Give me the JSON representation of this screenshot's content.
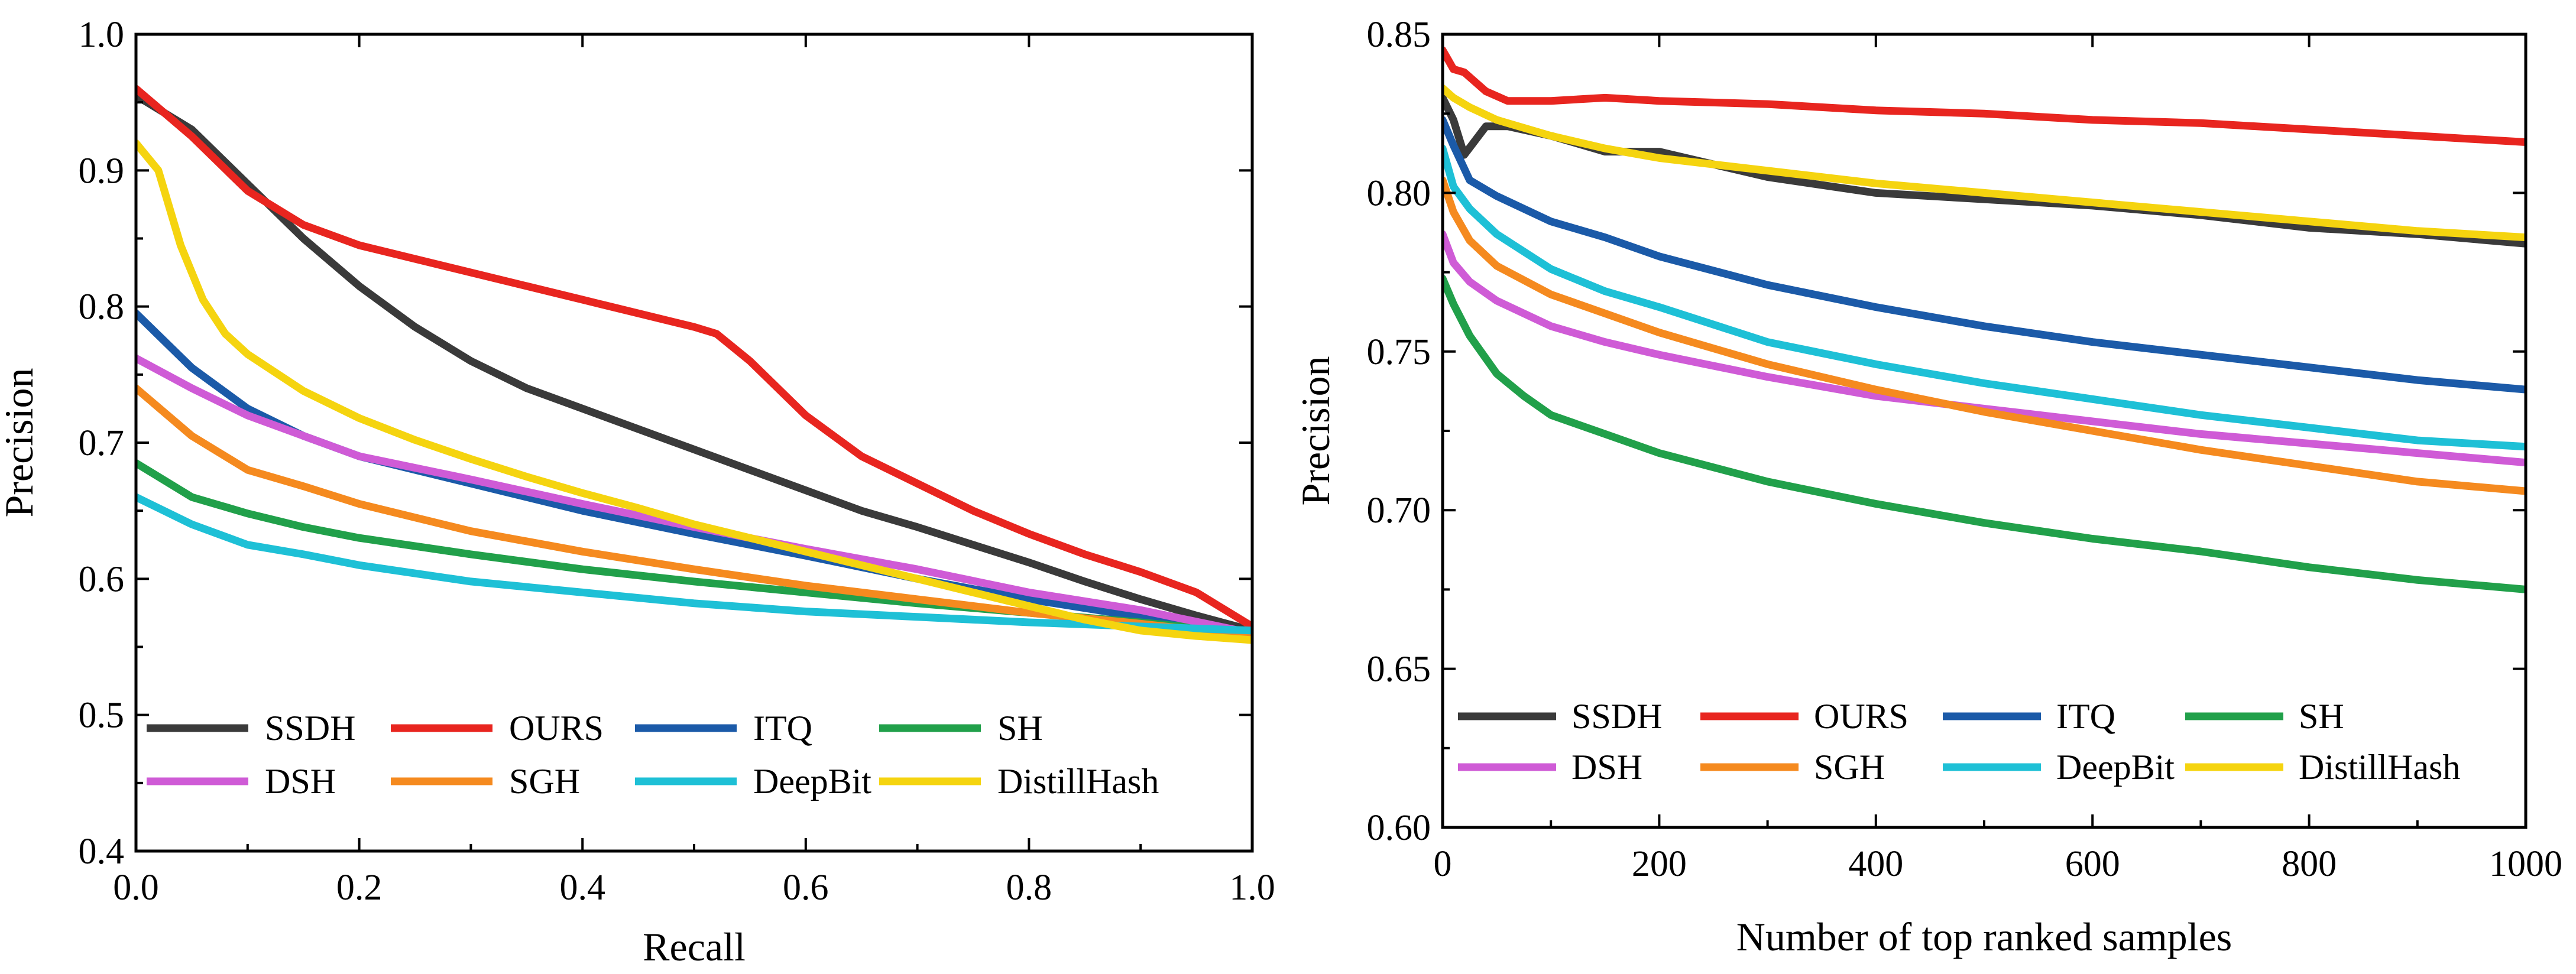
{
  "chart_data": [
    {
      "type": "line",
      "title": "",
      "xlabel": "Recall",
      "ylabel": "Precision",
      "xlim": [
        0,
        1
      ],
      "ylim": [
        0.4,
        1.0
      ],
      "xticks": [
        0,
        0.2,
        0.4,
        0.6,
        0.8,
        1.0
      ],
      "xtick_labels": [
        "0.0",
        "0.2",
        "0.4",
        "0.6",
        "0.8",
        "1.0"
      ],
      "yticks": [
        0.4,
        0.5,
        0.6,
        0.7,
        0.8,
        0.9,
        1.0
      ],
      "ytick_labels": [
        "0.4",
        "0.5",
        "0.6",
        "0.7",
        "0.8",
        "0.9",
        "1.0"
      ],
      "legend_position": "bottom",
      "grid": false,
      "series": [
        {
          "name": "SSDH",
          "color": "#3a3a3a",
          "x": [
            0,
            0.05,
            0.1,
            0.15,
            0.2,
            0.25,
            0.3,
            0.35,
            0.4,
            0.45,
            0.5,
            0.55,
            0.6,
            0.65,
            0.7,
            0.75,
            0.8,
            0.85,
            0.9,
            0.95,
            1.0
          ],
          "y": [
            0.955,
            0.93,
            0.89,
            0.85,
            0.815,
            0.785,
            0.76,
            0.74,
            0.725,
            0.71,
            0.695,
            0.68,
            0.665,
            0.65,
            0.638,
            0.625,
            0.612,
            0.598,
            0.585,
            0.573,
            0.562
          ]
        },
        {
          "name": "OURS",
          "color": "#e8251f",
          "x": [
            0,
            0.05,
            0.1,
            0.15,
            0.2,
            0.25,
            0.3,
            0.35,
            0.4,
            0.45,
            0.5,
            0.52,
            0.55,
            0.6,
            0.65,
            0.7,
            0.75,
            0.8,
            0.85,
            0.9,
            0.95,
            1.0
          ],
          "y": [
            0.96,
            0.925,
            0.885,
            0.86,
            0.845,
            0.835,
            0.825,
            0.815,
            0.805,
            0.795,
            0.785,
            0.78,
            0.76,
            0.72,
            0.69,
            0.67,
            0.65,
            0.633,
            0.618,
            0.605,
            0.59,
            0.565
          ]
        },
        {
          "name": "ITQ",
          "color": "#1b5aa8",
          "x": [
            0,
            0.05,
            0.1,
            0.15,
            0.2,
            0.3,
            0.4,
            0.5,
            0.6,
            0.7,
            0.8,
            0.9,
            1.0
          ],
          "y": [
            0.795,
            0.755,
            0.725,
            0.705,
            0.69,
            0.67,
            0.65,
            0.633,
            0.617,
            0.6,
            0.585,
            0.572,
            0.56
          ]
        },
        {
          "name": "SH",
          "color": "#21a04a",
          "x": [
            0,
            0.05,
            0.1,
            0.15,
            0.2,
            0.3,
            0.4,
            0.5,
            0.6,
            0.7,
            0.8,
            0.9,
            1.0
          ],
          "y": [
            0.685,
            0.66,
            0.648,
            0.638,
            0.63,
            0.618,
            0.607,
            0.598,
            0.59,
            0.582,
            0.575,
            0.568,
            0.56
          ]
        },
        {
          "name": "DSH",
          "color": "#cf5bd6",
          "x": [
            0,
            0.05,
            0.1,
            0.15,
            0.2,
            0.3,
            0.4,
            0.5,
            0.6,
            0.7,
            0.8,
            0.9,
            1.0
          ],
          "y": [
            0.762,
            0.74,
            0.72,
            0.705,
            0.69,
            0.673,
            0.655,
            0.638,
            0.622,
            0.607,
            0.59,
            0.577,
            0.56
          ]
        },
        {
          "name": "SGH",
          "color": "#f58a1f",
          "x": [
            0,
            0.05,
            0.1,
            0.15,
            0.2,
            0.3,
            0.4,
            0.5,
            0.6,
            0.7,
            0.8,
            0.9,
            1.0
          ],
          "y": [
            0.74,
            0.705,
            0.68,
            0.668,
            0.655,
            0.635,
            0.62,
            0.607,
            0.595,
            0.585,
            0.575,
            0.567,
            0.558
          ]
        },
        {
          "name": "DeepBit",
          "color": "#1ec0d6",
          "x": [
            0,
            0.05,
            0.1,
            0.15,
            0.2,
            0.3,
            0.4,
            0.5,
            0.6,
            0.7,
            0.8,
            0.9,
            1.0
          ],
          "y": [
            0.66,
            0.64,
            0.625,
            0.618,
            0.61,
            0.598,
            0.59,
            0.582,
            0.576,
            0.572,
            0.568,
            0.565,
            0.562
          ]
        },
        {
          "name": "DistillHash",
          "color": "#f5d40f",
          "x": [
            0,
            0.02,
            0.04,
            0.06,
            0.08,
            0.1,
            0.15,
            0.2,
            0.25,
            0.3,
            0.35,
            0.4,
            0.45,
            0.5,
            0.55,
            0.6,
            0.65,
            0.7,
            0.75,
            0.8,
            0.85,
            0.9,
            0.95,
            1.0
          ],
          "y": [
            0.92,
            0.9,
            0.845,
            0.805,
            0.78,
            0.765,
            0.738,
            0.718,
            0.702,
            0.688,
            0.675,
            0.663,
            0.652,
            0.64,
            0.63,
            0.62,
            0.61,
            0.6,
            0.59,
            0.58,
            0.57,
            0.562,
            0.558,
            0.555
          ]
        }
      ]
    },
    {
      "type": "line",
      "title": "",
      "xlabel": "Number of top ranked samples",
      "ylabel": "Precision",
      "xlim": [
        0,
        1000
      ],
      "ylim": [
        0.6,
        0.85
      ],
      "xticks": [
        0,
        200,
        400,
        600,
        800,
        1000
      ],
      "xtick_labels": [
        "0",
        "200",
        "400",
        "600",
        "800",
        "1000"
      ],
      "yticks": [
        0.6,
        0.65,
        0.7,
        0.75,
        0.8,
        0.85
      ],
      "ytick_labels": [
        "0.60",
        "0.65",
        "0.70",
        "0.75",
        "0.80",
        "0.85"
      ],
      "legend_position": "bottom",
      "grid": false,
      "series": [
        {
          "name": "SSDH",
          "color": "#3a3a3a",
          "x": [
            0,
            10,
            20,
            40,
            60,
            100,
            150,
            200,
            250,
            300,
            400,
            500,
            600,
            700,
            800,
            900,
            1000
          ],
          "y": [
            0.83,
            0.823,
            0.812,
            0.821,
            0.821,
            0.818,
            0.813,
            0.813,
            0.809,
            0.805,
            0.8,
            0.798,
            0.796,
            0.793,
            0.789,
            0.787,
            0.784
          ]
        },
        {
          "name": "OURS",
          "color": "#e8251f",
          "x": [
            0,
            5,
            10,
            20,
            40,
            60,
            100,
            150,
            200,
            300,
            400,
            500,
            600,
            700,
            800,
            900,
            1000
          ],
          "y": [
            0.845,
            0.842,
            0.839,
            0.838,
            0.832,
            0.829,
            0.829,
            0.83,
            0.829,
            0.828,
            0.826,
            0.825,
            0.823,
            0.822,
            0.82,
            0.818,
            0.816
          ]
        },
        {
          "name": "ITQ",
          "color": "#1b5aa8",
          "x": [
            0,
            10,
            25,
            50,
            100,
            150,
            200,
            300,
            400,
            500,
            600,
            700,
            800,
            900,
            1000
          ],
          "y": [
            0.823,
            0.815,
            0.804,
            0.799,
            0.791,
            0.786,
            0.78,
            0.771,
            0.764,
            0.758,
            0.753,
            0.749,
            0.745,
            0.741,
            0.738
          ]
        },
        {
          "name": "SH",
          "color": "#21a04a",
          "x": [
            0,
            10,
            25,
            50,
            75,
            100,
            150,
            200,
            300,
            400,
            500,
            600,
            700,
            800,
            900,
            1000
          ],
          "y": [
            0.773,
            0.765,
            0.755,
            0.743,
            0.736,
            0.73,
            0.724,
            0.718,
            0.709,
            0.702,
            0.696,
            0.691,
            0.687,
            0.682,
            0.678,
            0.675
          ]
        },
        {
          "name": "DSH",
          "color": "#cf5bd6",
          "x": [
            0,
            10,
            25,
            50,
            100,
            150,
            200,
            300,
            400,
            500,
            600,
            700,
            800,
            900,
            1000
          ],
          "y": [
            0.787,
            0.778,
            0.772,
            0.766,
            0.758,
            0.753,
            0.749,
            0.742,
            0.736,
            0.732,
            0.728,
            0.724,
            0.721,
            0.718,
            0.715
          ]
        },
        {
          "name": "SGH",
          "color": "#f58a1f",
          "x": [
            0,
            10,
            25,
            50,
            100,
            150,
            200,
            300,
            400,
            500,
            600,
            700,
            800,
            900,
            1000
          ],
          "y": [
            0.804,
            0.794,
            0.785,
            0.777,
            0.768,
            0.762,
            0.756,
            0.746,
            0.738,
            0.731,
            0.725,
            0.719,
            0.714,
            0.709,
            0.706
          ]
        },
        {
          "name": "DeepBit",
          "color": "#1ec0d6",
          "x": [
            0,
            10,
            25,
            50,
            100,
            150,
            200,
            300,
            400,
            500,
            600,
            700,
            800,
            900,
            1000
          ],
          "y": [
            0.814,
            0.802,
            0.795,
            0.787,
            0.776,
            0.769,
            0.764,
            0.753,
            0.746,
            0.74,
            0.735,
            0.73,
            0.726,
            0.722,
            0.72
          ]
        },
        {
          "name": "DistillHash",
          "color": "#f5d40f",
          "x": [
            0,
            10,
            25,
            50,
            100,
            150,
            200,
            300,
            400,
            500,
            600,
            700,
            800,
            900,
            1000
          ],
          "y": [
            0.833,
            0.83,
            0.827,
            0.823,
            0.818,
            0.814,
            0.811,
            0.807,
            0.803,
            0.8,
            0.797,
            0.794,
            0.791,
            0.788,
            0.786
          ]
        }
      ]
    }
  ]
}
